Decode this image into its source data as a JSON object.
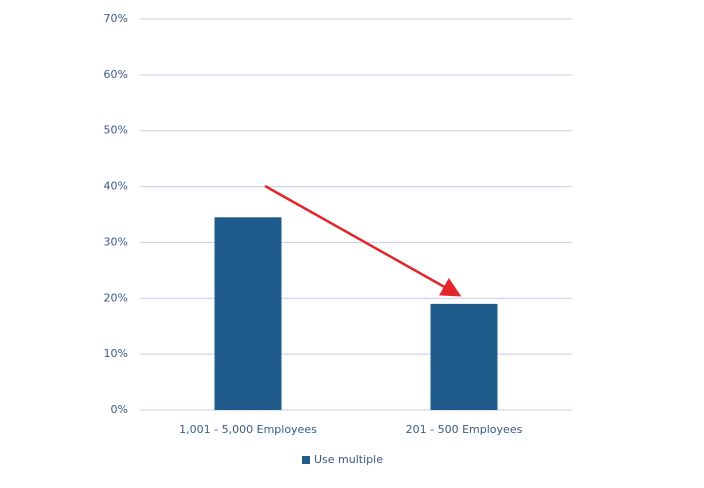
{
  "chart_data": {
    "type": "bar",
    "categories": [
      "1,001 - 5,000 Employees",
      "201 - 500 Employees"
    ],
    "series": [
      {
        "name": "Use multiple",
        "color": "#1f5b8b",
        "values": [
          34.5,
          19
        ]
      }
    ],
    "ylim": [
      0,
      70
    ],
    "yticks": [
      {
        "value": 0,
        "label": "0%"
      },
      {
        "value": 10,
        "label": "10%"
      },
      {
        "value": 20,
        "label": "20%"
      },
      {
        "value": 30,
        "label": "30%"
      },
      {
        "value": 40,
        "label": "40%"
      },
      {
        "value": 50,
        "label": "50%"
      },
      {
        "value": 60,
        "label": "60%"
      },
      {
        "value": 70,
        "label": "70%"
      }
    ],
    "grid": true,
    "legend": "bottom"
  }
}
